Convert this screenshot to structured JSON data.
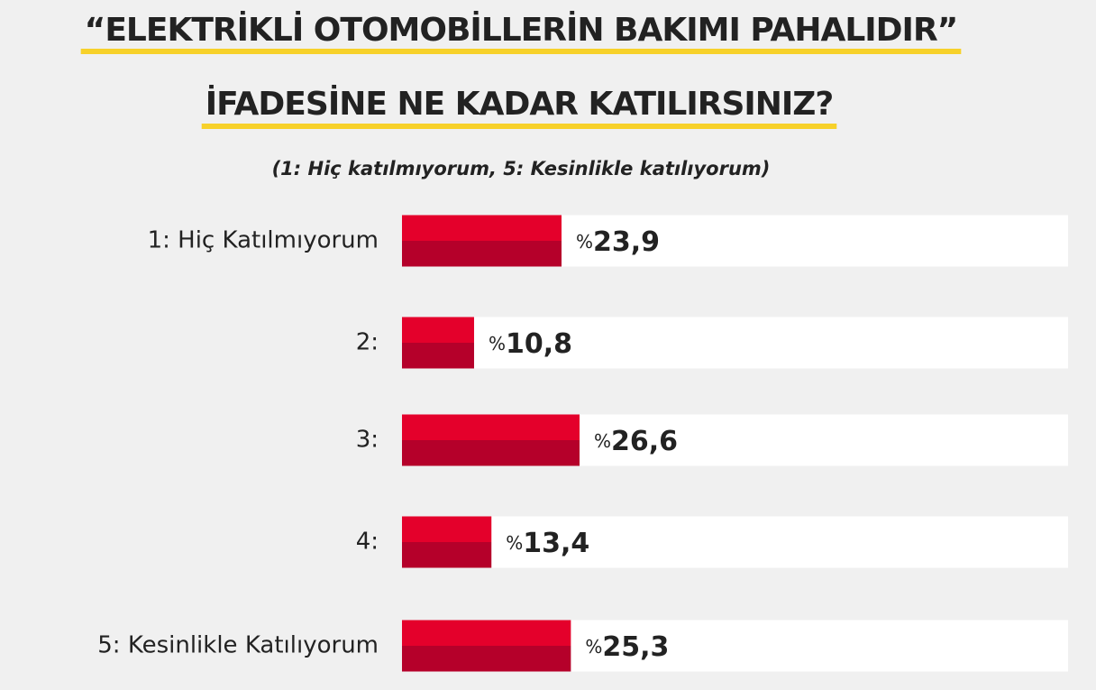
{
  "chart_data": {
    "type": "bar",
    "orientation": "horizontal",
    "title": [
      "“ELEKTRİKLİ OTOMOBİLLERİN BAKIMI PAHALIDIR”",
      "İFADESİNE NE KADAR KATILIRSINIZ?"
    ],
    "subtitle": "(1: Hiç katılmıyorum, 5: Kesinlikle katılıyorum)",
    "categories": [
      "1: Hiç Katılmıyorum",
      "2:",
      "3:",
      "4:",
      "5: Kesinlikle Katılıyorum"
    ],
    "values": [
      23.9,
      10.8,
      26.6,
      13.4,
      25.3
    ],
    "value_labels": [
      "%23,9",
      "%10,8",
      "%26,6",
      "%13,4",
      "%25,3"
    ],
    "color": "#e4002b"
  }
}
